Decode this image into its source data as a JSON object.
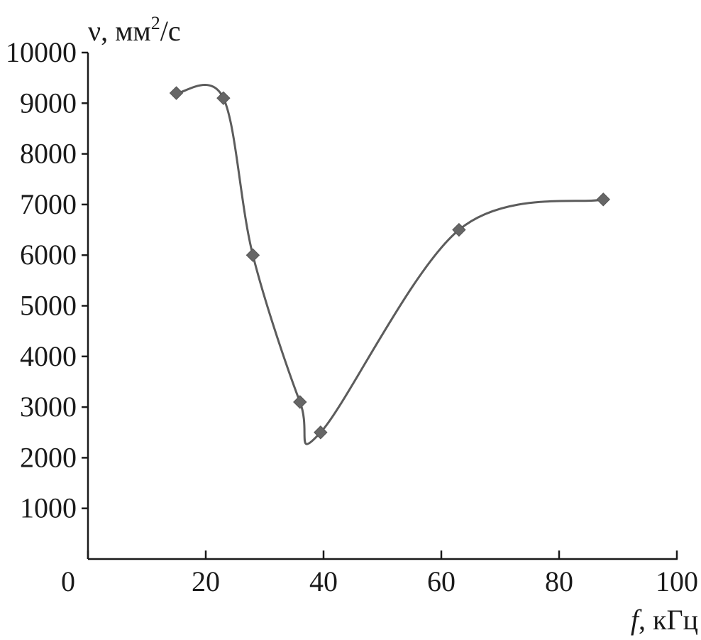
{
  "chart_data": {
    "type": "line",
    "title": "",
    "xlabel_symbol": "f",
    "xlabel_unit": ", кГц",
    "ylabel_symbol": "ν",
    "ylabel_unit_pre": ", мм",
    "ylabel_unit_sup": "2",
    "ylabel_unit_post": "/с",
    "xlim": [
      0,
      100
    ],
    "ylim": [
      0,
      10000
    ],
    "x_ticks": [
      0,
      20,
      40,
      60,
      80,
      100
    ],
    "y_ticks": [
      1000,
      2000,
      3000,
      4000,
      5000,
      6000,
      7000,
      8000,
      9000,
      10000
    ],
    "grid": false,
    "marker": "diamond",
    "line_style": "smooth",
    "series": [
      {
        "x": [
          15,
          23,
          28,
          36,
          39.5,
          63,
          87.5
        ],
        "y": [
          9200,
          9100,
          6000,
          3100,
          2500,
          6500,
          7100
        ]
      }
    ],
    "colors": {
      "line": "#5c5c5c",
      "marker": "#666666",
      "axis": "#1a1a1a"
    }
  }
}
